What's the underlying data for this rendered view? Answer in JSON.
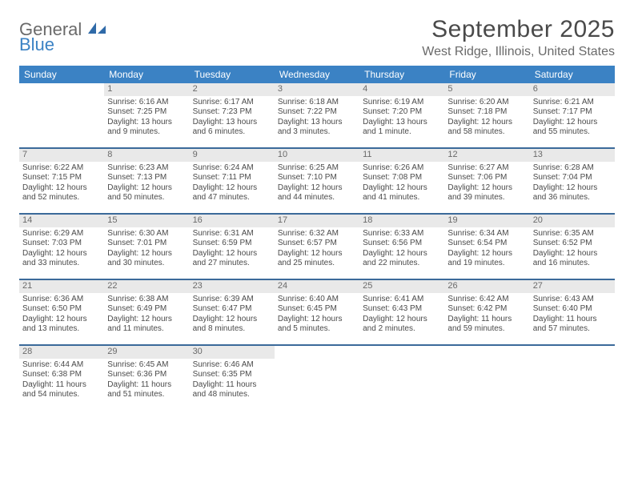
{
  "logo": {
    "general": "General",
    "blue": "Blue"
  },
  "title": "September 2025",
  "location": "West Ridge, Illinois, United States",
  "colors": {
    "header_bg": "#3b82c4",
    "header_text": "#ffffff",
    "daynum_bg": "#e9e9e9",
    "daynum_text": "#6a6a6a",
    "divider": "#3b6a9a",
    "body_text": "#4a4a4a",
    "title_text": "#4a4a4a",
    "location_text": "#6a6a6a"
  },
  "dow": [
    "Sunday",
    "Monday",
    "Tuesday",
    "Wednesday",
    "Thursday",
    "Friday",
    "Saturday"
  ],
  "weeks": [
    [
      {
        "n": "",
        "sr": "",
        "ss": "",
        "dl": ""
      },
      {
        "n": "1",
        "sr": "Sunrise: 6:16 AM",
        "ss": "Sunset: 7:25 PM",
        "dl": "Daylight: 13 hours and 9 minutes."
      },
      {
        "n": "2",
        "sr": "Sunrise: 6:17 AM",
        "ss": "Sunset: 7:23 PM",
        "dl": "Daylight: 13 hours and 6 minutes."
      },
      {
        "n": "3",
        "sr": "Sunrise: 6:18 AM",
        "ss": "Sunset: 7:22 PM",
        "dl": "Daylight: 13 hours and 3 minutes."
      },
      {
        "n": "4",
        "sr": "Sunrise: 6:19 AM",
        "ss": "Sunset: 7:20 PM",
        "dl": "Daylight: 13 hours and 1 minute."
      },
      {
        "n": "5",
        "sr": "Sunrise: 6:20 AM",
        "ss": "Sunset: 7:18 PM",
        "dl": "Daylight: 12 hours and 58 minutes."
      },
      {
        "n": "6",
        "sr": "Sunrise: 6:21 AM",
        "ss": "Sunset: 7:17 PM",
        "dl": "Daylight: 12 hours and 55 minutes."
      }
    ],
    [
      {
        "n": "7",
        "sr": "Sunrise: 6:22 AM",
        "ss": "Sunset: 7:15 PM",
        "dl": "Daylight: 12 hours and 52 minutes."
      },
      {
        "n": "8",
        "sr": "Sunrise: 6:23 AM",
        "ss": "Sunset: 7:13 PM",
        "dl": "Daylight: 12 hours and 50 minutes."
      },
      {
        "n": "9",
        "sr": "Sunrise: 6:24 AM",
        "ss": "Sunset: 7:11 PM",
        "dl": "Daylight: 12 hours and 47 minutes."
      },
      {
        "n": "10",
        "sr": "Sunrise: 6:25 AM",
        "ss": "Sunset: 7:10 PM",
        "dl": "Daylight: 12 hours and 44 minutes."
      },
      {
        "n": "11",
        "sr": "Sunrise: 6:26 AM",
        "ss": "Sunset: 7:08 PM",
        "dl": "Daylight: 12 hours and 41 minutes."
      },
      {
        "n": "12",
        "sr": "Sunrise: 6:27 AM",
        "ss": "Sunset: 7:06 PM",
        "dl": "Daylight: 12 hours and 39 minutes."
      },
      {
        "n": "13",
        "sr": "Sunrise: 6:28 AM",
        "ss": "Sunset: 7:04 PM",
        "dl": "Daylight: 12 hours and 36 minutes."
      }
    ],
    [
      {
        "n": "14",
        "sr": "Sunrise: 6:29 AM",
        "ss": "Sunset: 7:03 PM",
        "dl": "Daylight: 12 hours and 33 minutes."
      },
      {
        "n": "15",
        "sr": "Sunrise: 6:30 AM",
        "ss": "Sunset: 7:01 PM",
        "dl": "Daylight: 12 hours and 30 minutes."
      },
      {
        "n": "16",
        "sr": "Sunrise: 6:31 AM",
        "ss": "Sunset: 6:59 PM",
        "dl": "Daylight: 12 hours and 27 minutes."
      },
      {
        "n": "17",
        "sr": "Sunrise: 6:32 AM",
        "ss": "Sunset: 6:57 PM",
        "dl": "Daylight: 12 hours and 25 minutes."
      },
      {
        "n": "18",
        "sr": "Sunrise: 6:33 AM",
        "ss": "Sunset: 6:56 PM",
        "dl": "Daylight: 12 hours and 22 minutes."
      },
      {
        "n": "19",
        "sr": "Sunrise: 6:34 AM",
        "ss": "Sunset: 6:54 PM",
        "dl": "Daylight: 12 hours and 19 minutes."
      },
      {
        "n": "20",
        "sr": "Sunrise: 6:35 AM",
        "ss": "Sunset: 6:52 PM",
        "dl": "Daylight: 12 hours and 16 minutes."
      }
    ],
    [
      {
        "n": "21",
        "sr": "Sunrise: 6:36 AM",
        "ss": "Sunset: 6:50 PM",
        "dl": "Daylight: 12 hours and 13 minutes."
      },
      {
        "n": "22",
        "sr": "Sunrise: 6:38 AM",
        "ss": "Sunset: 6:49 PM",
        "dl": "Daylight: 12 hours and 11 minutes."
      },
      {
        "n": "23",
        "sr": "Sunrise: 6:39 AM",
        "ss": "Sunset: 6:47 PM",
        "dl": "Daylight: 12 hours and 8 minutes."
      },
      {
        "n": "24",
        "sr": "Sunrise: 6:40 AM",
        "ss": "Sunset: 6:45 PM",
        "dl": "Daylight: 12 hours and 5 minutes."
      },
      {
        "n": "25",
        "sr": "Sunrise: 6:41 AM",
        "ss": "Sunset: 6:43 PM",
        "dl": "Daylight: 12 hours and 2 minutes."
      },
      {
        "n": "26",
        "sr": "Sunrise: 6:42 AM",
        "ss": "Sunset: 6:42 PM",
        "dl": "Daylight: 11 hours and 59 minutes."
      },
      {
        "n": "27",
        "sr": "Sunrise: 6:43 AM",
        "ss": "Sunset: 6:40 PM",
        "dl": "Daylight: 11 hours and 57 minutes."
      }
    ],
    [
      {
        "n": "28",
        "sr": "Sunrise: 6:44 AM",
        "ss": "Sunset: 6:38 PM",
        "dl": "Daylight: 11 hours and 54 minutes."
      },
      {
        "n": "29",
        "sr": "Sunrise: 6:45 AM",
        "ss": "Sunset: 6:36 PM",
        "dl": "Daylight: 11 hours and 51 minutes."
      },
      {
        "n": "30",
        "sr": "Sunrise: 6:46 AM",
        "ss": "Sunset: 6:35 PM",
        "dl": "Daylight: 11 hours and 48 minutes."
      },
      {
        "n": "",
        "sr": "",
        "ss": "",
        "dl": ""
      },
      {
        "n": "",
        "sr": "",
        "ss": "",
        "dl": ""
      },
      {
        "n": "",
        "sr": "",
        "ss": "",
        "dl": ""
      },
      {
        "n": "",
        "sr": "",
        "ss": "",
        "dl": ""
      }
    ]
  ]
}
